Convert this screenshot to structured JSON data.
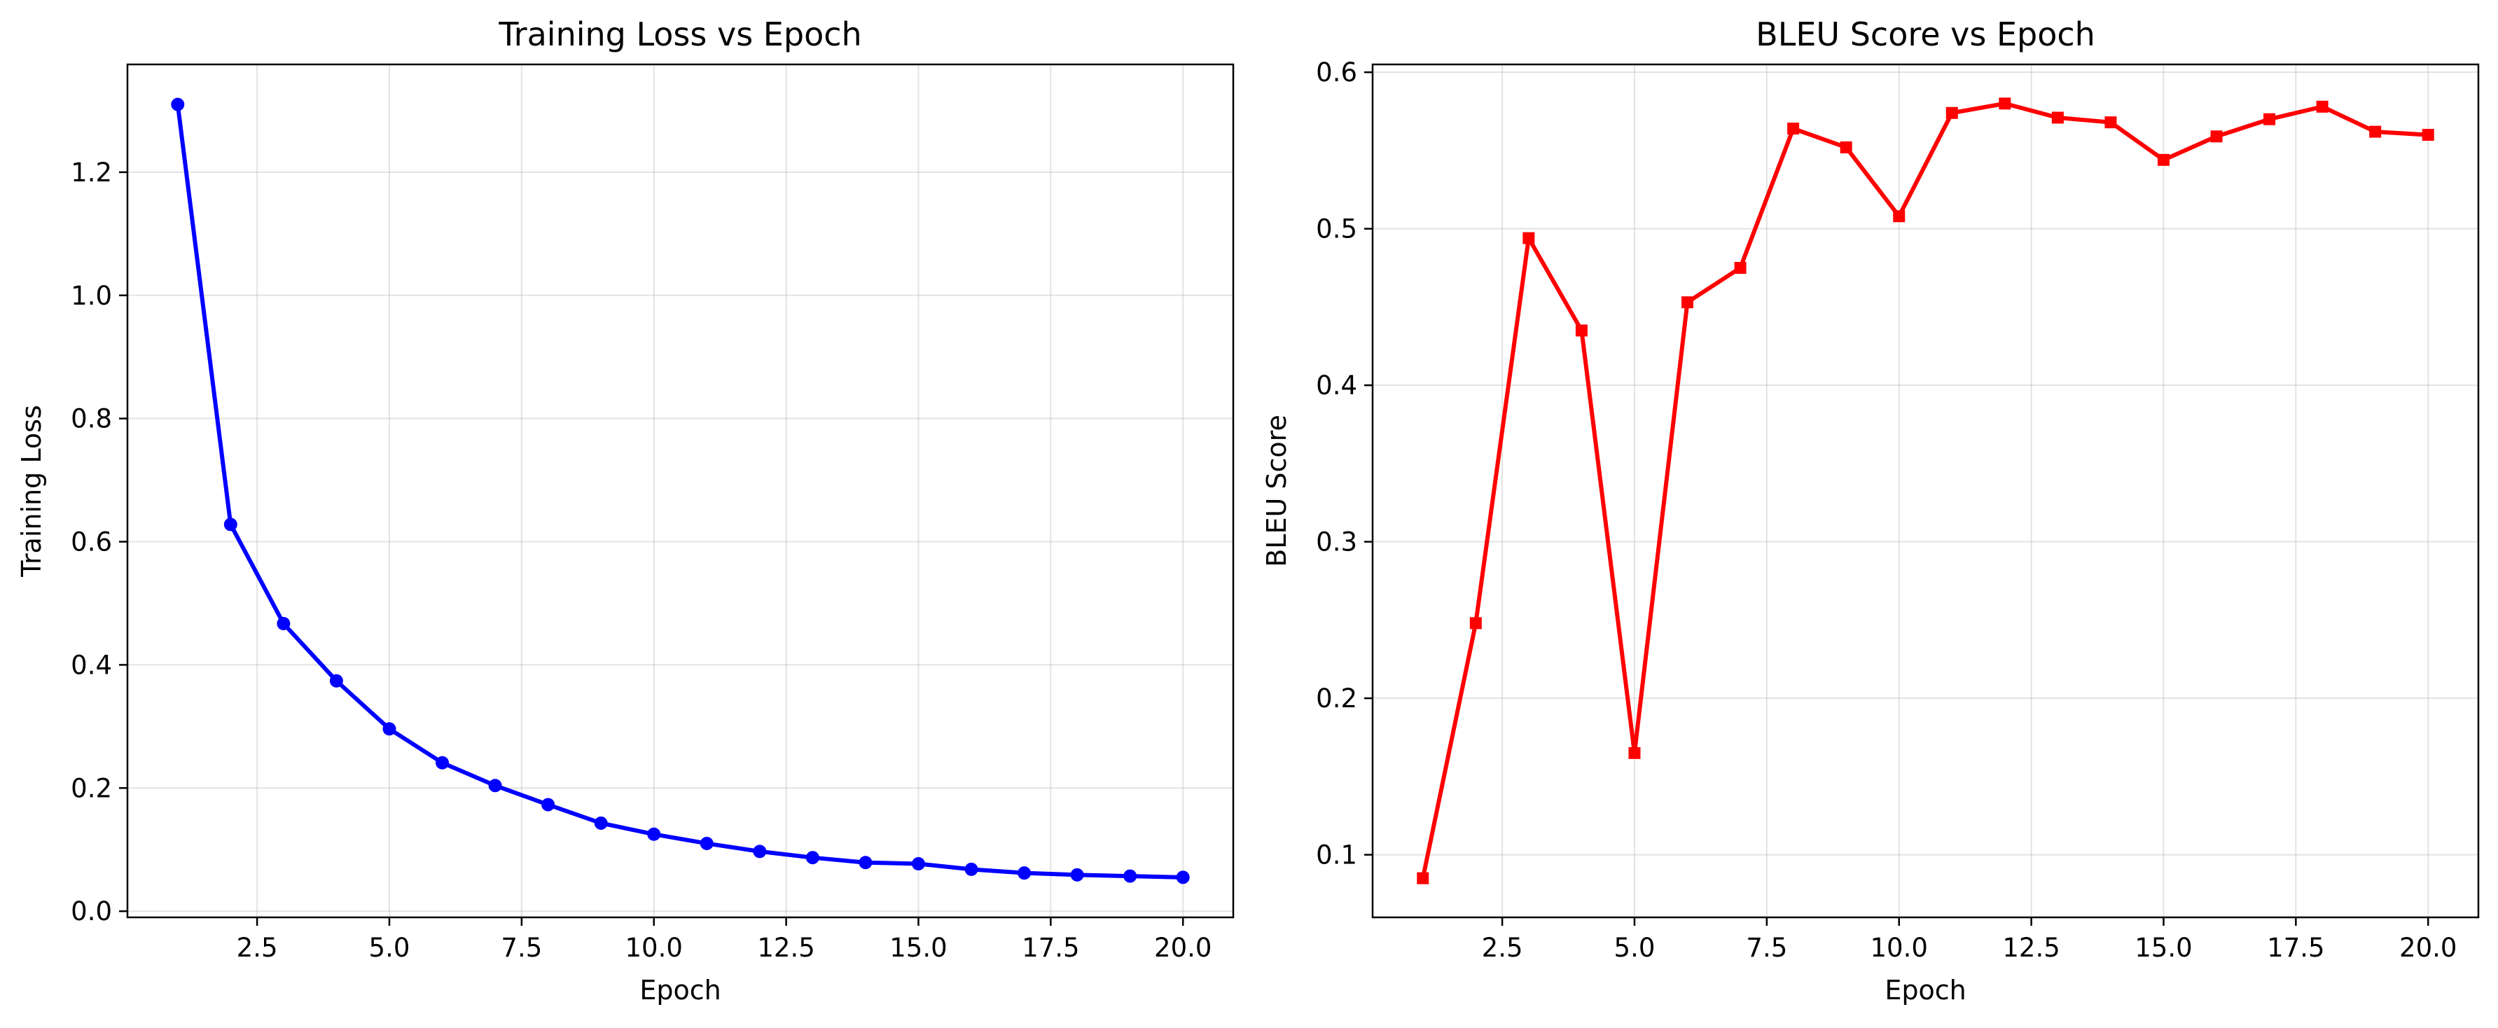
{
  "chart_data": [
    {
      "type": "line",
      "title": "Training Loss vs Epoch",
      "xlabel": "Epoch",
      "ylabel": "Training Loss",
      "xlim": [
        0.05,
        20.95
      ],
      "ylim": [
        -0.01,
        1.375
      ],
      "xticks": [
        2.5,
        5.0,
        7.5,
        10.0,
        12.5,
        15.0,
        17.5,
        20.0
      ],
      "xtick_labels": [
        "2.5",
        "5.0",
        "7.5",
        "10.0",
        "12.5",
        "15.0",
        "17.5",
        "20.0"
      ],
      "yticks": [
        0.0,
        0.2,
        0.4,
        0.6,
        0.8,
        1.0,
        1.2
      ],
      "ytick_labels": [
        "0.0",
        "0.2",
        "0.4",
        "0.6",
        "0.8",
        "1.0",
        "1.2"
      ],
      "grid": true,
      "marker": "circle",
      "color": "#0000ff",
      "series": [
        {
          "x": [
            1,
            2,
            3,
            4,
            5,
            6,
            7,
            8,
            9,
            10,
            11,
            12,
            13,
            14,
            15,
            16,
            17,
            18,
            19,
            20
          ],
          "values": [
            1.31,
            0.628,
            0.467,
            0.374,
            0.296,
            0.241,
            0.204,
            0.173,
            0.143,
            0.125,
            0.11,
            0.097,
            0.087,
            0.079,
            0.077,
            0.068,
            0.062,
            0.059,
            0.057,
            0.055
          ]
        }
      ]
    },
    {
      "type": "line",
      "title": "BLEU Score vs Epoch",
      "xlabel": "Epoch",
      "ylabel": "BLEU Score",
      "xlim": [
        0.05,
        20.95
      ],
      "ylim": [
        0.06,
        0.605
      ],
      "xticks": [
        2.5,
        5.0,
        7.5,
        10.0,
        12.5,
        15.0,
        17.5,
        20.0
      ],
      "xtick_labels": [
        "2.5",
        "5.0",
        "7.5",
        "10.0",
        "12.5",
        "15.0",
        "17.5",
        "20.0"
      ],
      "yticks": [
        0.1,
        0.2,
        0.3,
        0.4,
        0.5,
        0.6
      ],
      "ytick_labels": [
        "0.1",
        "0.2",
        "0.3",
        "0.4",
        "0.5",
        "0.6"
      ],
      "grid": true,
      "marker": "square",
      "color": "#ff0000",
      "series": [
        {
          "x": [
            1,
            2,
            3,
            4,
            5,
            6,
            7,
            8,
            9,
            10,
            11,
            12,
            13,
            14,
            15,
            16,
            17,
            18,
            19,
            20
          ],
          "values": [
            0.085,
            0.248,
            0.494,
            0.435,
            0.165,
            0.453,
            0.475,
            0.564,
            0.552,
            0.508,
            0.574,
            0.58,
            0.571,
            0.568,
            0.544,
            0.559,
            0.57,
            0.578,
            0.562,
            0.56
          ]
        }
      ]
    }
  ]
}
